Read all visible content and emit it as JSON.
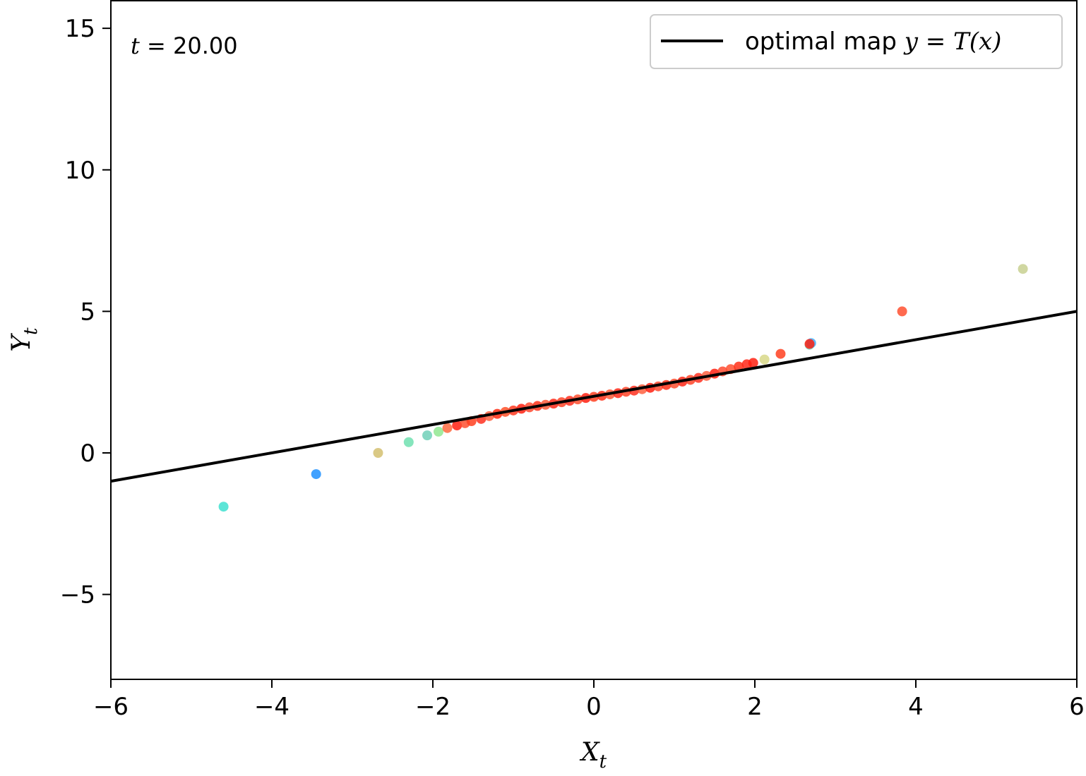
{
  "chart_data": {
    "type": "scatter",
    "title": "",
    "xlabel": "X",
    "xlabel_sub": "t",
    "ylabel": "Y",
    "ylabel_sub": "t",
    "xlim": [
      -6,
      6
    ],
    "ylim": [
      -8,
      16
    ],
    "xticks": [
      -6,
      -4,
      -2,
      0,
      2,
      4,
      6
    ],
    "xtick_labels": [
      "−6",
      "−4",
      "−2",
      "0",
      "2",
      "4",
      "6"
    ],
    "yticks": [
      -5,
      0,
      5,
      10,
      15
    ],
    "ytick_labels": [
      "−5",
      "0",
      "5",
      "10",
      "15"
    ],
    "grid": false,
    "legend_placement": "top-right",
    "annotation": {
      "var": "t",
      "eq": " = 20.00"
    },
    "series": [
      {
        "name": "optimal map y = T(x)",
        "legend_label": {
          "text": "optimal map ",
          "math": "y",
          "eq": " = ",
          "func": "T",
          "arg": "(x)"
        },
        "type": "line",
        "color": "#000000",
        "x": [
          -6,
          6
        ],
        "y": [
          -1.0,
          5.0
        ]
      },
      {
        "type": "scatter",
        "points": [
          {
            "x": -4.6,
            "y": -1.9,
            "color": "#40e0d0"
          },
          {
            "x": -3.45,
            "y": -0.75,
            "color": "#1e90ff"
          },
          {
            "x": -2.68,
            "y": 0.0,
            "color": "#d4c070"
          },
          {
            "x": -2.3,
            "y": 0.38,
            "color": "#70e0b0"
          },
          {
            "x": -2.07,
            "y": 0.62,
            "color": "#70d0b8"
          },
          {
            "x": -1.93,
            "y": 0.75,
            "color": "#90e890"
          },
          {
            "x": -1.82,
            "y": 0.88,
            "color": "#ff6a40"
          },
          {
            "x": -1.7,
            "y": 0.97,
            "color": "#ff2010"
          },
          {
            "x": -1.6,
            "y": 1.05,
            "color": "#ff5030"
          },
          {
            "x": -1.52,
            "y": 1.12,
            "color": "#ff4020"
          },
          {
            "x": -1.4,
            "y": 1.2,
            "color": "#ff3020"
          },
          {
            "x": -1.3,
            "y": 1.3,
            "color": "#ff6040"
          },
          {
            "x": -1.2,
            "y": 1.38,
            "color": "#ff2a10"
          },
          {
            "x": -1.1,
            "y": 1.45,
            "color": "#ff5028"
          },
          {
            "x": -1.0,
            "y": 1.5,
            "color": "#ff3a20"
          },
          {
            "x": -0.9,
            "y": 1.56,
            "color": "#ff2010"
          },
          {
            "x": -0.8,
            "y": 1.61,
            "color": "#ff4a30"
          },
          {
            "x": -0.7,
            "y": 1.66,
            "color": "#ff3018"
          },
          {
            "x": -0.6,
            "y": 1.7,
            "color": "#ff5a38"
          },
          {
            "x": -0.5,
            "y": 1.74,
            "color": "#ff2818"
          },
          {
            "x": -0.4,
            "y": 1.79,
            "color": "#ff4428"
          },
          {
            "x": -0.3,
            "y": 1.84,
            "color": "#ff3020"
          },
          {
            "x": -0.2,
            "y": 1.89,
            "color": "#ff5030"
          },
          {
            "x": -0.1,
            "y": 1.94,
            "color": "#ff2010"
          },
          {
            "x": 0.0,
            "y": 1.98,
            "color": "#ff4020"
          },
          {
            "x": 0.1,
            "y": 2.02,
            "color": "#ff3018"
          },
          {
            "x": 0.2,
            "y": 2.07,
            "color": "#ff5a38"
          },
          {
            "x": 0.3,
            "y": 2.11,
            "color": "#ff2818"
          },
          {
            "x": 0.4,
            "y": 2.16,
            "color": "#ff4428"
          },
          {
            "x": 0.5,
            "y": 2.2,
            "color": "#ff3020"
          },
          {
            "x": 0.6,
            "y": 2.25,
            "color": "#ff6040"
          },
          {
            "x": 0.7,
            "y": 2.3,
            "color": "#ff2010"
          },
          {
            "x": 0.8,
            "y": 2.35,
            "color": "#ff4a30"
          },
          {
            "x": 0.9,
            "y": 2.4,
            "color": "#ff3018"
          },
          {
            "x": 1.0,
            "y": 2.45,
            "color": "#ff5030"
          },
          {
            "x": 1.1,
            "y": 2.52,
            "color": "#ff2818"
          },
          {
            "x": 1.2,
            "y": 2.58,
            "color": "#ff4428"
          },
          {
            "x": 1.3,
            "y": 2.65,
            "color": "#ff3020"
          },
          {
            "x": 1.4,
            "y": 2.72,
            "color": "#ff6040"
          },
          {
            "x": 1.5,
            "y": 2.8,
            "color": "#ff2010"
          },
          {
            "x": 1.6,
            "y": 2.88,
            "color": "#ff4a30"
          },
          {
            "x": 1.7,
            "y": 2.96,
            "color": "#ff5030"
          },
          {
            "x": 1.8,
            "y": 3.05,
            "color": "#ff3018"
          },
          {
            "x": 1.9,
            "y": 3.13,
            "color": "#ff2818"
          },
          {
            "x": 1.98,
            "y": 3.18,
            "color": "#ff2010"
          },
          {
            "x": 2.12,
            "y": 3.3,
            "color": "#d8d888"
          },
          {
            "x": 2.32,
            "y": 3.5,
            "color": "#ff4020"
          },
          {
            "x": 2.68,
            "y": 3.82,
            "color": "#70e0d0"
          },
          {
            "x": 2.7,
            "y": 3.88,
            "color": "#40b0ff"
          },
          {
            "x": 2.68,
            "y": 3.85,
            "color": "#ff2010"
          },
          {
            "x": 3.83,
            "y": 5.0,
            "color": "#ff5030"
          },
          {
            "x": 5.33,
            "y": 6.5,
            "color": "#c8d090"
          }
        ]
      }
    ]
  }
}
